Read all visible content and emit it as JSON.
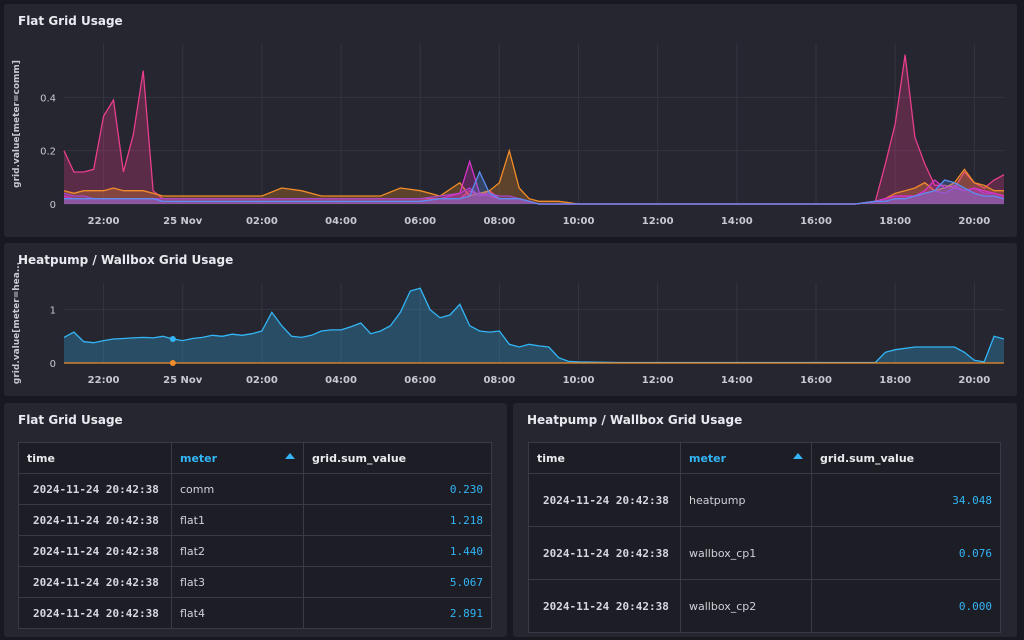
{
  "panels": {
    "flat_chart": {
      "title": "Flat Grid Usage",
      "ylabel": "grid.value[meter=comm]",
      "yticks": [
        "0.4",
        "0.2",
        "0"
      ],
      "xticks": [
        "22:00",
        "25 Nov",
        "02:00",
        "04:00",
        "06:00",
        "08:00",
        "10:00",
        "12:00",
        "14:00",
        "16:00",
        "18:00",
        "20:00"
      ]
    },
    "heat_chart": {
      "title": "Heatpump / Wallbox Grid Usage",
      "ylabel": "grid.value[meter=hea...",
      "yticks": [
        "1",
        "0"
      ],
      "xticks": [
        "22:00",
        "25 Nov",
        "02:00",
        "04:00",
        "06:00",
        "08:00",
        "10:00",
        "12:00",
        "14:00",
        "16:00",
        "18:00",
        "20:00"
      ]
    },
    "flat_table": {
      "title": "Flat Grid Usage",
      "headers": {
        "time": "time",
        "meter": "meter",
        "value": "grid.sum_value"
      },
      "rows": [
        {
          "time": "2024-11-24 20:42:38",
          "meter": "comm",
          "value": "0.230"
        },
        {
          "time": "2024-11-24 20:42:38",
          "meter": "flat1",
          "value": "1.218"
        },
        {
          "time": "2024-11-24 20:42:38",
          "meter": "flat2",
          "value": "1.440"
        },
        {
          "time": "2024-11-24 20:42:38",
          "meter": "flat3",
          "value": "5.067"
        },
        {
          "time": "2024-11-24 20:42:38",
          "meter": "flat4",
          "value": "2.891"
        }
      ]
    },
    "heat_table": {
      "title": "Heatpump / Wallbox Grid Usage",
      "headers": {
        "time": "time",
        "meter": "meter",
        "value": "grid.sum_value"
      },
      "rows": [
        {
          "time": "2024-11-24 20:42:38",
          "meter": "heatpump",
          "value": "34.048"
        },
        {
          "time": "2024-11-24 20:42:38",
          "meter": "wallbox_cp1",
          "value": "0.076"
        },
        {
          "time": "2024-11-24 20:42:38",
          "meter": "wallbox_cp2",
          "value": "0.000"
        }
      ]
    }
  },
  "colors": {
    "accent": "#33b5f6",
    "panel": "#25262f",
    "background": "#181920"
  },
  "chart_data": [
    {
      "type": "area",
      "title": "Flat Grid Usage",
      "ylabel": "grid.value[meter=comm]",
      "x_hours": [
        -3,
        -2.75,
        -2.5,
        -2.25,
        -2,
        -1.75,
        -1.5,
        -1.25,
        -1,
        -0.75,
        -0.5,
        -0.25,
        0,
        0.5,
        1,
        1.5,
        2,
        2.5,
        3,
        3.5,
        4,
        4.5,
        5,
        5.5,
        6,
        6.5,
        7,
        7.25,
        7.5,
        7.75,
        8,
        8.25,
        8.5,
        8.75,
        9,
        9.5,
        10,
        11,
        12,
        13,
        14,
        15,
        16,
        17,
        17.5,
        17.75,
        18,
        18.25,
        18.5,
        18.75,
        19,
        19.25,
        19.5,
        19.75,
        20,
        20.25,
        20.5,
        20.75
      ],
      "ylim": [
        0,
        0.6
      ],
      "series": [
        {
          "color": "#e83e8c",
          "values": [
            0.2,
            0.12,
            0.12,
            0.13,
            0.33,
            0.39,
            0.12,
            0.26,
            0.5,
            0.05,
            0.02,
            0.02,
            0.02,
            0.02,
            0.02,
            0.02,
            0.02,
            0.02,
            0.02,
            0.02,
            0.02,
            0.02,
            0.02,
            0.02,
            0.02,
            0.02,
            0.02,
            0.05,
            0.03,
            0.05,
            0.02,
            0.02,
            0.02,
            0.01,
            0,
            0,
            0,
            0,
            0,
            0,
            0,
            0,
            0,
            0,
            0.01,
            0.15,
            0.3,
            0.56,
            0.25,
            0.15,
            0.07,
            0.07,
            0.06,
            0.12,
            0.08,
            0.06,
            0.09,
            0.11
          ]
        },
        {
          "color": "#f28c28",
          "values": [
            0.05,
            0.04,
            0.05,
            0.05,
            0.05,
            0.06,
            0.05,
            0.05,
            0.05,
            0.04,
            0.03,
            0.03,
            0.03,
            0.03,
            0.03,
            0.03,
            0.03,
            0.06,
            0.05,
            0.03,
            0.03,
            0.03,
            0.03,
            0.06,
            0.05,
            0.03,
            0.08,
            0.03,
            0.04,
            0.05,
            0.08,
            0.2,
            0.06,
            0.02,
            0.01,
            0.01,
            0,
            0,
            0,
            0,
            0,
            0,
            0,
            0,
            0.01,
            0.02,
            0.04,
            0.05,
            0.06,
            0.08,
            0.05,
            0.06,
            0.08,
            0.13,
            0.08,
            0.07,
            0.05,
            0.05
          ]
        },
        {
          "color": "#a646c8",
          "values": [
            0.04,
            0.03,
            0.03,
            0.02,
            0.02,
            0.02,
            0.02,
            0.02,
            0.02,
            0.02,
            0.02,
            0.02,
            0.02,
            0.02,
            0.02,
            0.02,
            0.02,
            0.02,
            0.02,
            0.02,
            0.02,
            0.02,
            0.02,
            0.02,
            0.02,
            0.03,
            0.04,
            0.06,
            0.03,
            0.04,
            0.03,
            0.03,
            0.02,
            0.01,
            0,
            0,
            0,
            0,
            0,
            0,
            0,
            0,
            0,
            0,
            0.01,
            0.02,
            0.03,
            0.03,
            0.03,
            0.04,
            0.05,
            0.04,
            0.06,
            0.05,
            0.06,
            0.04,
            0.04,
            0.03
          ]
        },
        {
          "color": "#d633c8",
          "values": [
            0.03,
            0.02,
            0.02,
            0.02,
            0.02,
            0.02,
            0.02,
            0.02,
            0.02,
            0.02,
            0.01,
            0.01,
            0.01,
            0.01,
            0.01,
            0.01,
            0.01,
            0.01,
            0.01,
            0.01,
            0.01,
            0.01,
            0.01,
            0.01,
            0.01,
            0.02,
            0.04,
            0.16,
            0.04,
            0.03,
            0.02,
            0.02,
            0.02,
            0.01,
            0,
            0,
            0,
            0,
            0,
            0,
            0,
            0,
            0,
            0,
            0.01,
            0.02,
            0.03,
            0.03,
            0.03,
            0.05,
            0.09,
            0.06,
            0.07,
            0.05,
            0.06,
            0.05,
            0.04,
            0.03
          ]
        },
        {
          "color": "#5b8ef2",
          "values": [
            0.02,
            0.02,
            0.02,
            0.02,
            0.02,
            0.02,
            0.02,
            0.02,
            0.02,
            0.02,
            0.01,
            0.01,
            0.01,
            0.01,
            0.01,
            0.01,
            0.01,
            0.01,
            0.01,
            0.01,
            0.01,
            0.01,
            0.01,
            0.01,
            0.01,
            0.02,
            0.02,
            0.03,
            0.12,
            0.04,
            0.02,
            0.02,
            0.02,
            0.01,
            0,
            0,
            0,
            0,
            0,
            0,
            0,
            0,
            0,
            0,
            0.01,
            0.01,
            0.02,
            0.02,
            0.03,
            0.04,
            0.05,
            0.09,
            0.08,
            0.06,
            0.04,
            0.03,
            0.03,
            0.02
          ]
        }
      ]
    },
    {
      "type": "area",
      "title": "Heatpump / Wallbox Grid Usage",
      "ylabel": "grid.value[meter=hea...",
      "x_hours": [
        -3,
        -2.75,
        -2.5,
        -2.25,
        -2,
        -1.75,
        -1.5,
        -1.25,
        -1,
        -0.75,
        -0.5,
        -0.25,
        0,
        0.25,
        0.5,
        0.75,
        1,
        1.25,
        1.5,
        1.75,
        2,
        2.25,
        2.5,
        2.75,
        3,
        3.25,
        3.5,
        3.75,
        4,
        4.25,
        4.5,
        4.75,
        5,
        5.25,
        5.5,
        5.75,
        6,
        6.25,
        6.5,
        6.75,
        7,
        7.25,
        7.5,
        7.75,
        8,
        8.25,
        8.5,
        8.75,
        9,
        9.25,
        9.5,
        9.75,
        10,
        11,
        12,
        13,
        14,
        15,
        16,
        17,
        17.5,
        17.75,
        18,
        18.5,
        19,
        19.5,
        19.75,
        20,
        20.25,
        20.5,
        20.75
      ],
      "ylim": [
        0,
        1.5
      ],
      "series": [
        {
          "color": "#33b5f6",
          "values": [
            0.48,
            0.58,
            0.4,
            0.38,
            0.42,
            0.45,
            0.46,
            0.47,
            0.48,
            0.47,
            0.5,
            0.45,
            0.42,
            0.46,
            0.48,
            0.52,
            0.5,
            0.54,
            0.52,
            0.55,
            0.6,
            0.95,
            0.7,
            0.5,
            0.48,
            0.52,
            0.6,
            0.62,
            0.62,
            0.68,
            0.75,
            0.55,
            0.6,
            0.7,
            0.95,
            1.35,
            1.4,
            1.0,
            0.85,
            0.9,
            1.1,
            0.7,
            0.6,
            0.58,
            0.6,
            0.35,
            0.3,
            0.35,
            0.32,
            0.3,
            0.1,
            0.03,
            0.02,
            0.01,
            0.01,
            0.01,
            0.01,
            0.01,
            0.01,
            0.01,
            0.01,
            0.2,
            0.25,
            0.3,
            0.3,
            0.3,
            0.2,
            0.05,
            0.02,
            0.5,
            0.45
          ]
        },
        {
          "color": "#f28c28",
          "values": [
            0,
            0,
            0,
            0,
            0,
            0,
            0,
            0,
            0,
            0,
            0,
            0,
            0,
            0,
            0,
            0,
            0,
            0,
            0,
            0,
            0,
            0,
            0,
            0,
            0,
            0,
            0,
            0,
            0,
            0,
            0,
            0,
            0,
            0,
            0,
            0,
            0,
            0,
            0,
            0,
            0,
            0,
            0,
            0,
            0,
            0,
            0,
            0,
            0,
            0,
            0,
            0,
            0,
            0,
            0,
            0,
            0,
            0,
            0,
            0,
            0,
            0,
            0,
            0,
            0,
            0,
            0,
            0,
            0,
            0,
            0
          ]
        }
      ]
    }
  ]
}
